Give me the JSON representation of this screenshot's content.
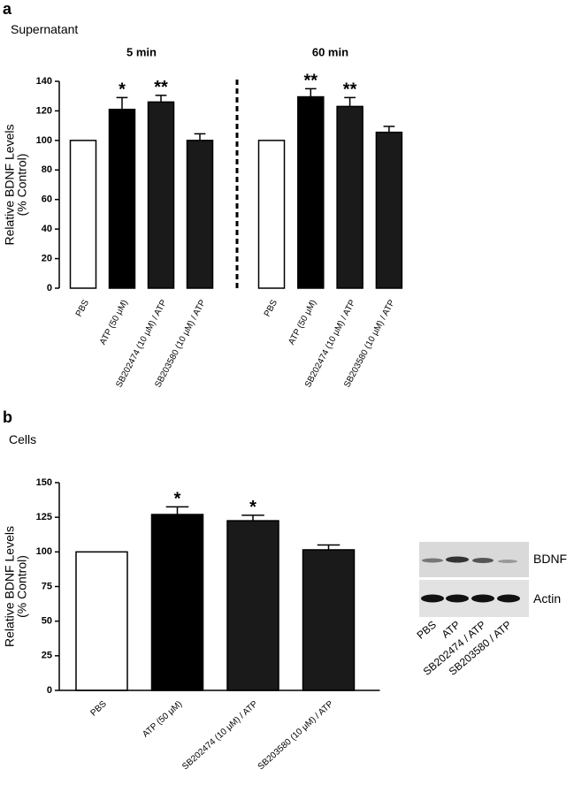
{
  "chart_data": [
    {
      "type": "bar",
      "panel": "a",
      "title": "Supernatant",
      "ylabel": [
        "Relative BDNF Levels",
        "(% Control)"
      ],
      "ylim": [
        0,
        140
      ],
      "yticks": [
        0,
        20,
        40,
        60,
        80,
        100,
        120,
        140
      ],
      "groups": [
        {
          "label": "5 min",
          "categories": [
            "PBS",
            "ATP (50 μM)",
            "SB202474 (10 μM) / ATP",
            "SB203580 (10 μM) / ATP"
          ],
          "values": [
            100,
            121,
            126,
            100
          ],
          "errors": [
            0,
            8,
            4.5,
            4.5
          ],
          "annotations": [
            null,
            "*",
            "**",
            null
          ],
          "colors": [
            "#ffffff",
            "#000000",
            "#1a1a1a",
            "#1a1a1a"
          ]
        },
        {
          "label": "60 min",
          "categories": [
            "PBS",
            "ATP (50 μM)",
            "SB202474 (10 μM) / ATP",
            "SB203580 (10 μM) / ATP"
          ],
          "values": [
            100,
            129.5,
            123,
            105.5
          ],
          "errors": [
            0,
            5.5,
            6,
            4
          ],
          "annotations": [
            null,
            "**",
            "**",
            null
          ],
          "colors": [
            "#ffffff",
            "#000000",
            "#1a1a1a",
            "#1a1a1a"
          ]
        }
      ]
    },
    {
      "type": "bar",
      "panel": "b",
      "title": "Cells",
      "ylabel": [
        "Relative BDNF Levels",
        "(% Control)"
      ],
      "ylim": [
        0,
        150
      ],
      "yticks": [
        0,
        25,
        50,
        75,
        100,
        125,
        150
      ],
      "groups": [
        {
          "categories": [
            "PBS",
            "ATP (50 μM)",
            "SB202474 (10 μM) / ATP",
            "SB203580 (10 μM) / ATP"
          ],
          "values": [
            100,
            127,
            122.5,
            101.5
          ],
          "errors": [
            0,
            5.5,
            4,
            3.5
          ],
          "annotations": [
            null,
            "*",
            "*",
            null
          ],
          "colors": [
            "#ffffff",
            "#000000",
            "#1a1a1a",
            "#1a1a1a"
          ]
        }
      ]
    }
  ],
  "blot": {
    "rows": [
      "BDNF",
      "Actin"
    ],
    "lanes": [
      "PBS",
      "ATP",
      "SB202474 / ATP",
      "SB203580 / ATP"
    ]
  }
}
